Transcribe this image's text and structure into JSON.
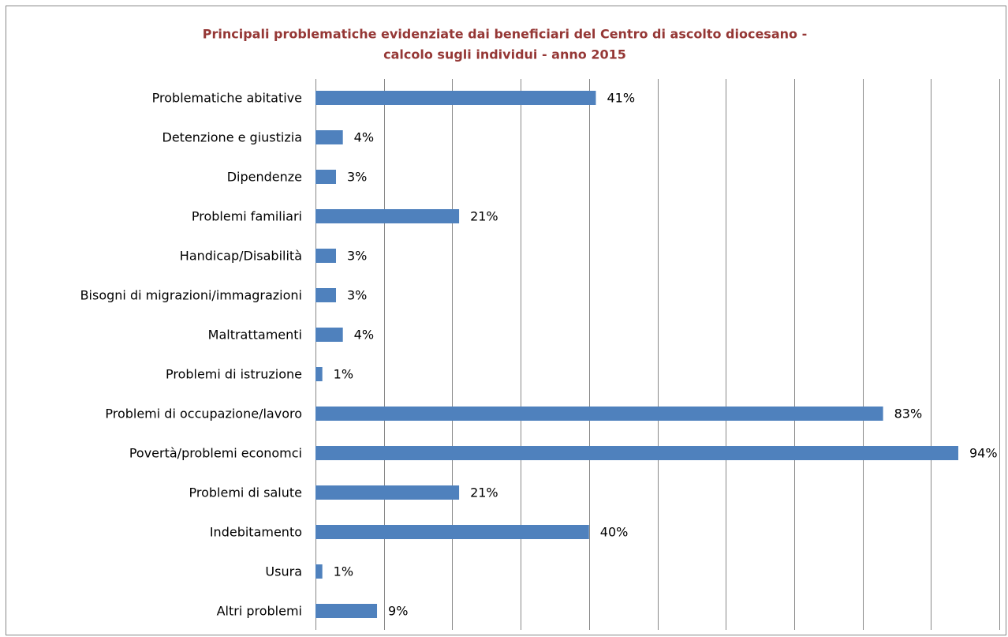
{
  "chart_data": {
    "type": "hbar",
    "title": "Principali problematiche evidenziate dai beneficiari del Centro di ascolto diocesano -",
    "subtitle": "calcolo sugli individui - anno 2015",
    "categories": [
      "Problematiche abitative",
      "Detenzione e giustizia",
      "Dipendenze",
      "Problemi familiari",
      "Handicap/Disabilità",
      "Bisogni di migrazioni/immagrazioni",
      "Maltrattamenti",
      "Problemi di istruzione",
      "Problemi di occupazione/lavoro",
      "Povertà/problemi economci",
      "Problemi di salute",
      "Indebitamento",
      "Usura",
      "Altri problemi"
    ],
    "values": [
      41,
      4,
      3,
      21,
      3,
      3,
      4,
      1,
      83,
      94,
      21,
      40,
      1,
      9
    ],
    "value_labels": [
      "41%",
      "4%",
      "3%",
      "21%",
      "3%",
      "3%",
      "4%",
      "1%",
      "83%",
      "94%",
      "21%",
      "40%",
      "1%",
      "9%"
    ],
    "color": "#4f81bd",
    "xlim": [
      0,
      100
    ],
    "xticks": [
      0,
      10,
      20,
      30,
      40,
      50,
      60,
      70,
      80,
      90,
      100
    ],
    "grid": true
  }
}
